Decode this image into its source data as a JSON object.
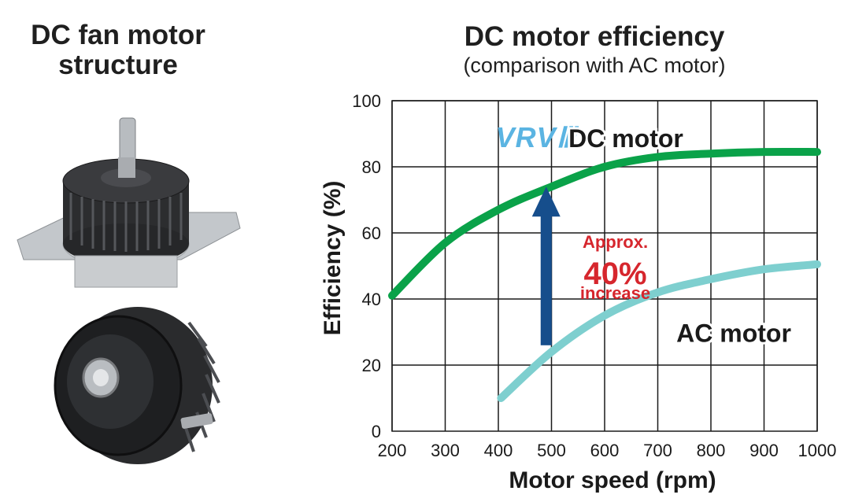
{
  "left_panel": {
    "title_line1": "DC fan motor",
    "title_line2": "structure",
    "photo": "dc-fan-motor-photos"
  },
  "colors": {
    "dc_series": "#0aa249",
    "ac_series": "#7ecfcf",
    "arrow": "#164e8c",
    "annotation": "#d6262d",
    "logo": "#5bb4e2",
    "grid": "#1a1a1a"
  },
  "chart_data": {
    "type": "line",
    "title": "DC motor efficiency",
    "subtitle": "(comparison with AC motor)",
    "xlabel": "Motor speed (rpm)",
    "ylabel": "Efficiency (%)",
    "xlim": [
      200,
      1000
    ],
    "ylim": [
      0,
      100
    ],
    "xticks": [
      "200",
      "300",
      "400",
      "500",
      "600",
      "700",
      "800",
      "900",
      "1000"
    ],
    "yticks": [
      "0",
      "20",
      "40",
      "60",
      "80",
      "100"
    ],
    "grid": true,
    "series": [
      {
        "name": "DC motor",
        "logo": "VRVⅢ",
        "x": [
          200,
          300,
          400,
          500,
          600,
          700,
          800,
          900,
          1000
        ],
        "y": [
          41,
          57,
          67,
          74,
          80,
          83,
          84,
          84.5,
          84.5
        ]
      },
      {
        "name": "AC motor",
        "x": [
          405,
          500,
          600,
          700,
          800,
          900,
          1000
        ],
        "y": [
          10,
          24,
          35,
          42,
          46,
          49,
          50.5
        ]
      }
    ],
    "annotation": {
      "line1": "Approx.",
      "line2": "40%",
      "line3": "increase",
      "arrow_x": 490,
      "arrow_from": 26,
      "arrow_to": 74
    }
  }
}
